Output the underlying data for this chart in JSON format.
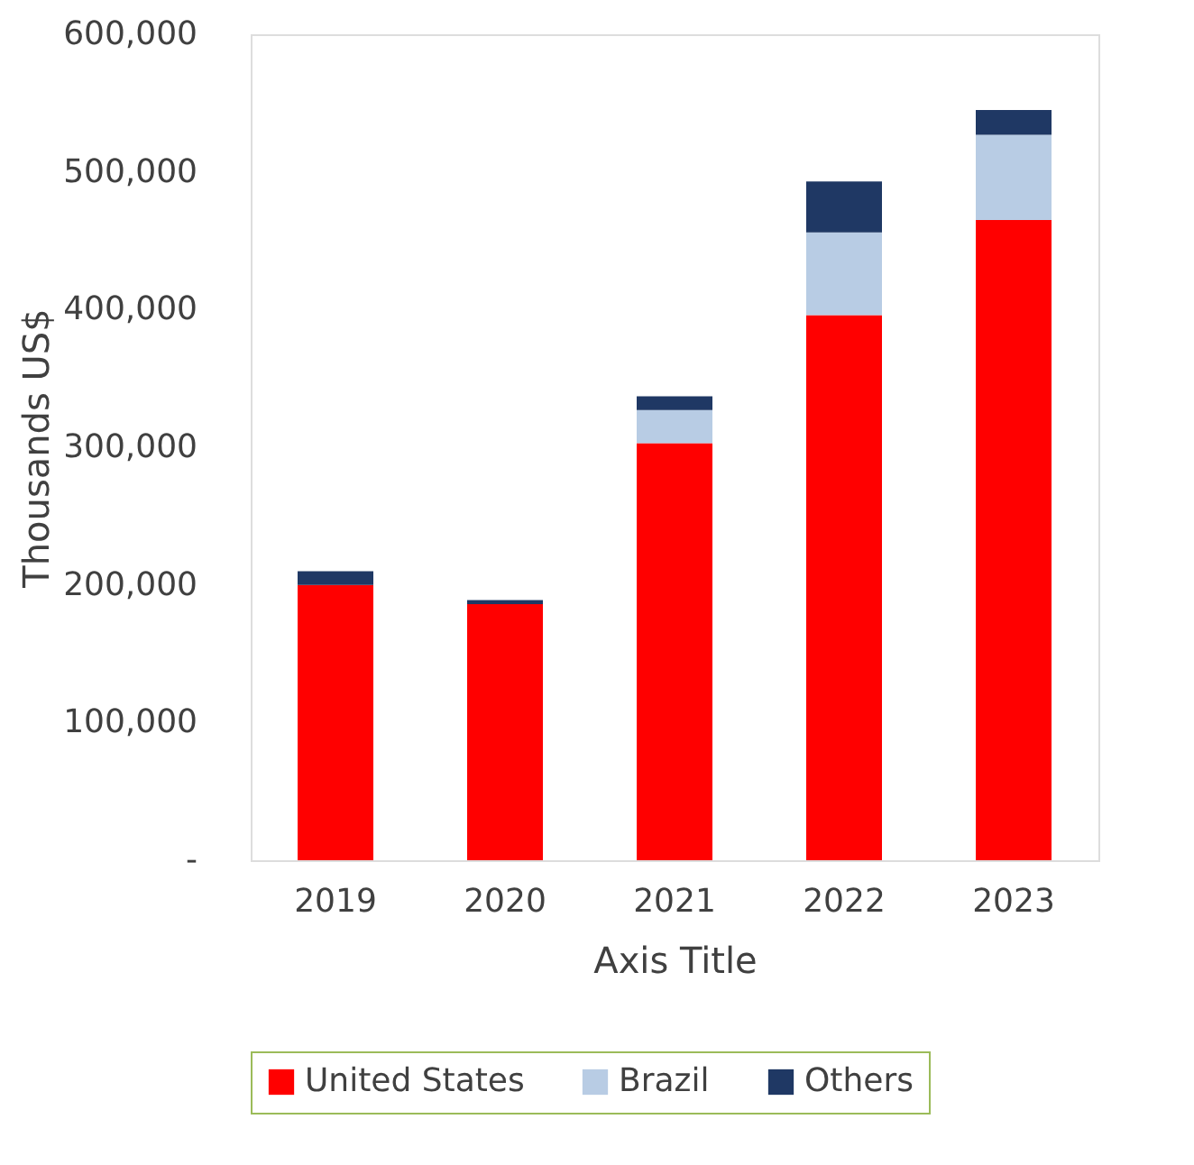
{
  "chart_data": {
    "type": "bar",
    "stacked": true,
    "xlabel": "Axis Title",
    "ylabel": "Thousands US$",
    "categories": [
      "2019",
      "2020",
      "2021",
      "2022",
      "2023"
    ],
    "series": [
      {
        "name": "United States",
        "color": "#ff0000",
        "values": [
          200000,
          186000,
          303000,
          396000,
          465000
        ]
      },
      {
        "name": "Brazil",
        "color": "#b8cce4",
        "values": [
          0,
          0,
          24000,
          60000,
          62000
        ]
      },
      {
        "name": "Others",
        "color": "#1f3864",
        "values": [
          10000,
          3000,
          10000,
          37000,
          18000
        ]
      }
    ],
    "ylim": [
      0,
      600000
    ],
    "yticks": [
      {
        "value": 0,
        "label": "-"
      },
      {
        "value": 100000,
        "label": "100,000"
      },
      {
        "value": 200000,
        "label": "200,000"
      },
      {
        "value": 300000,
        "label": "300,000"
      },
      {
        "value": 400000,
        "label": "400,000"
      },
      {
        "value": 500000,
        "label": "500,000"
      },
      {
        "value": 600000,
        "label": "600,000"
      }
    ],
    "grid": false,
    "legend": "bottom"
  }
}
